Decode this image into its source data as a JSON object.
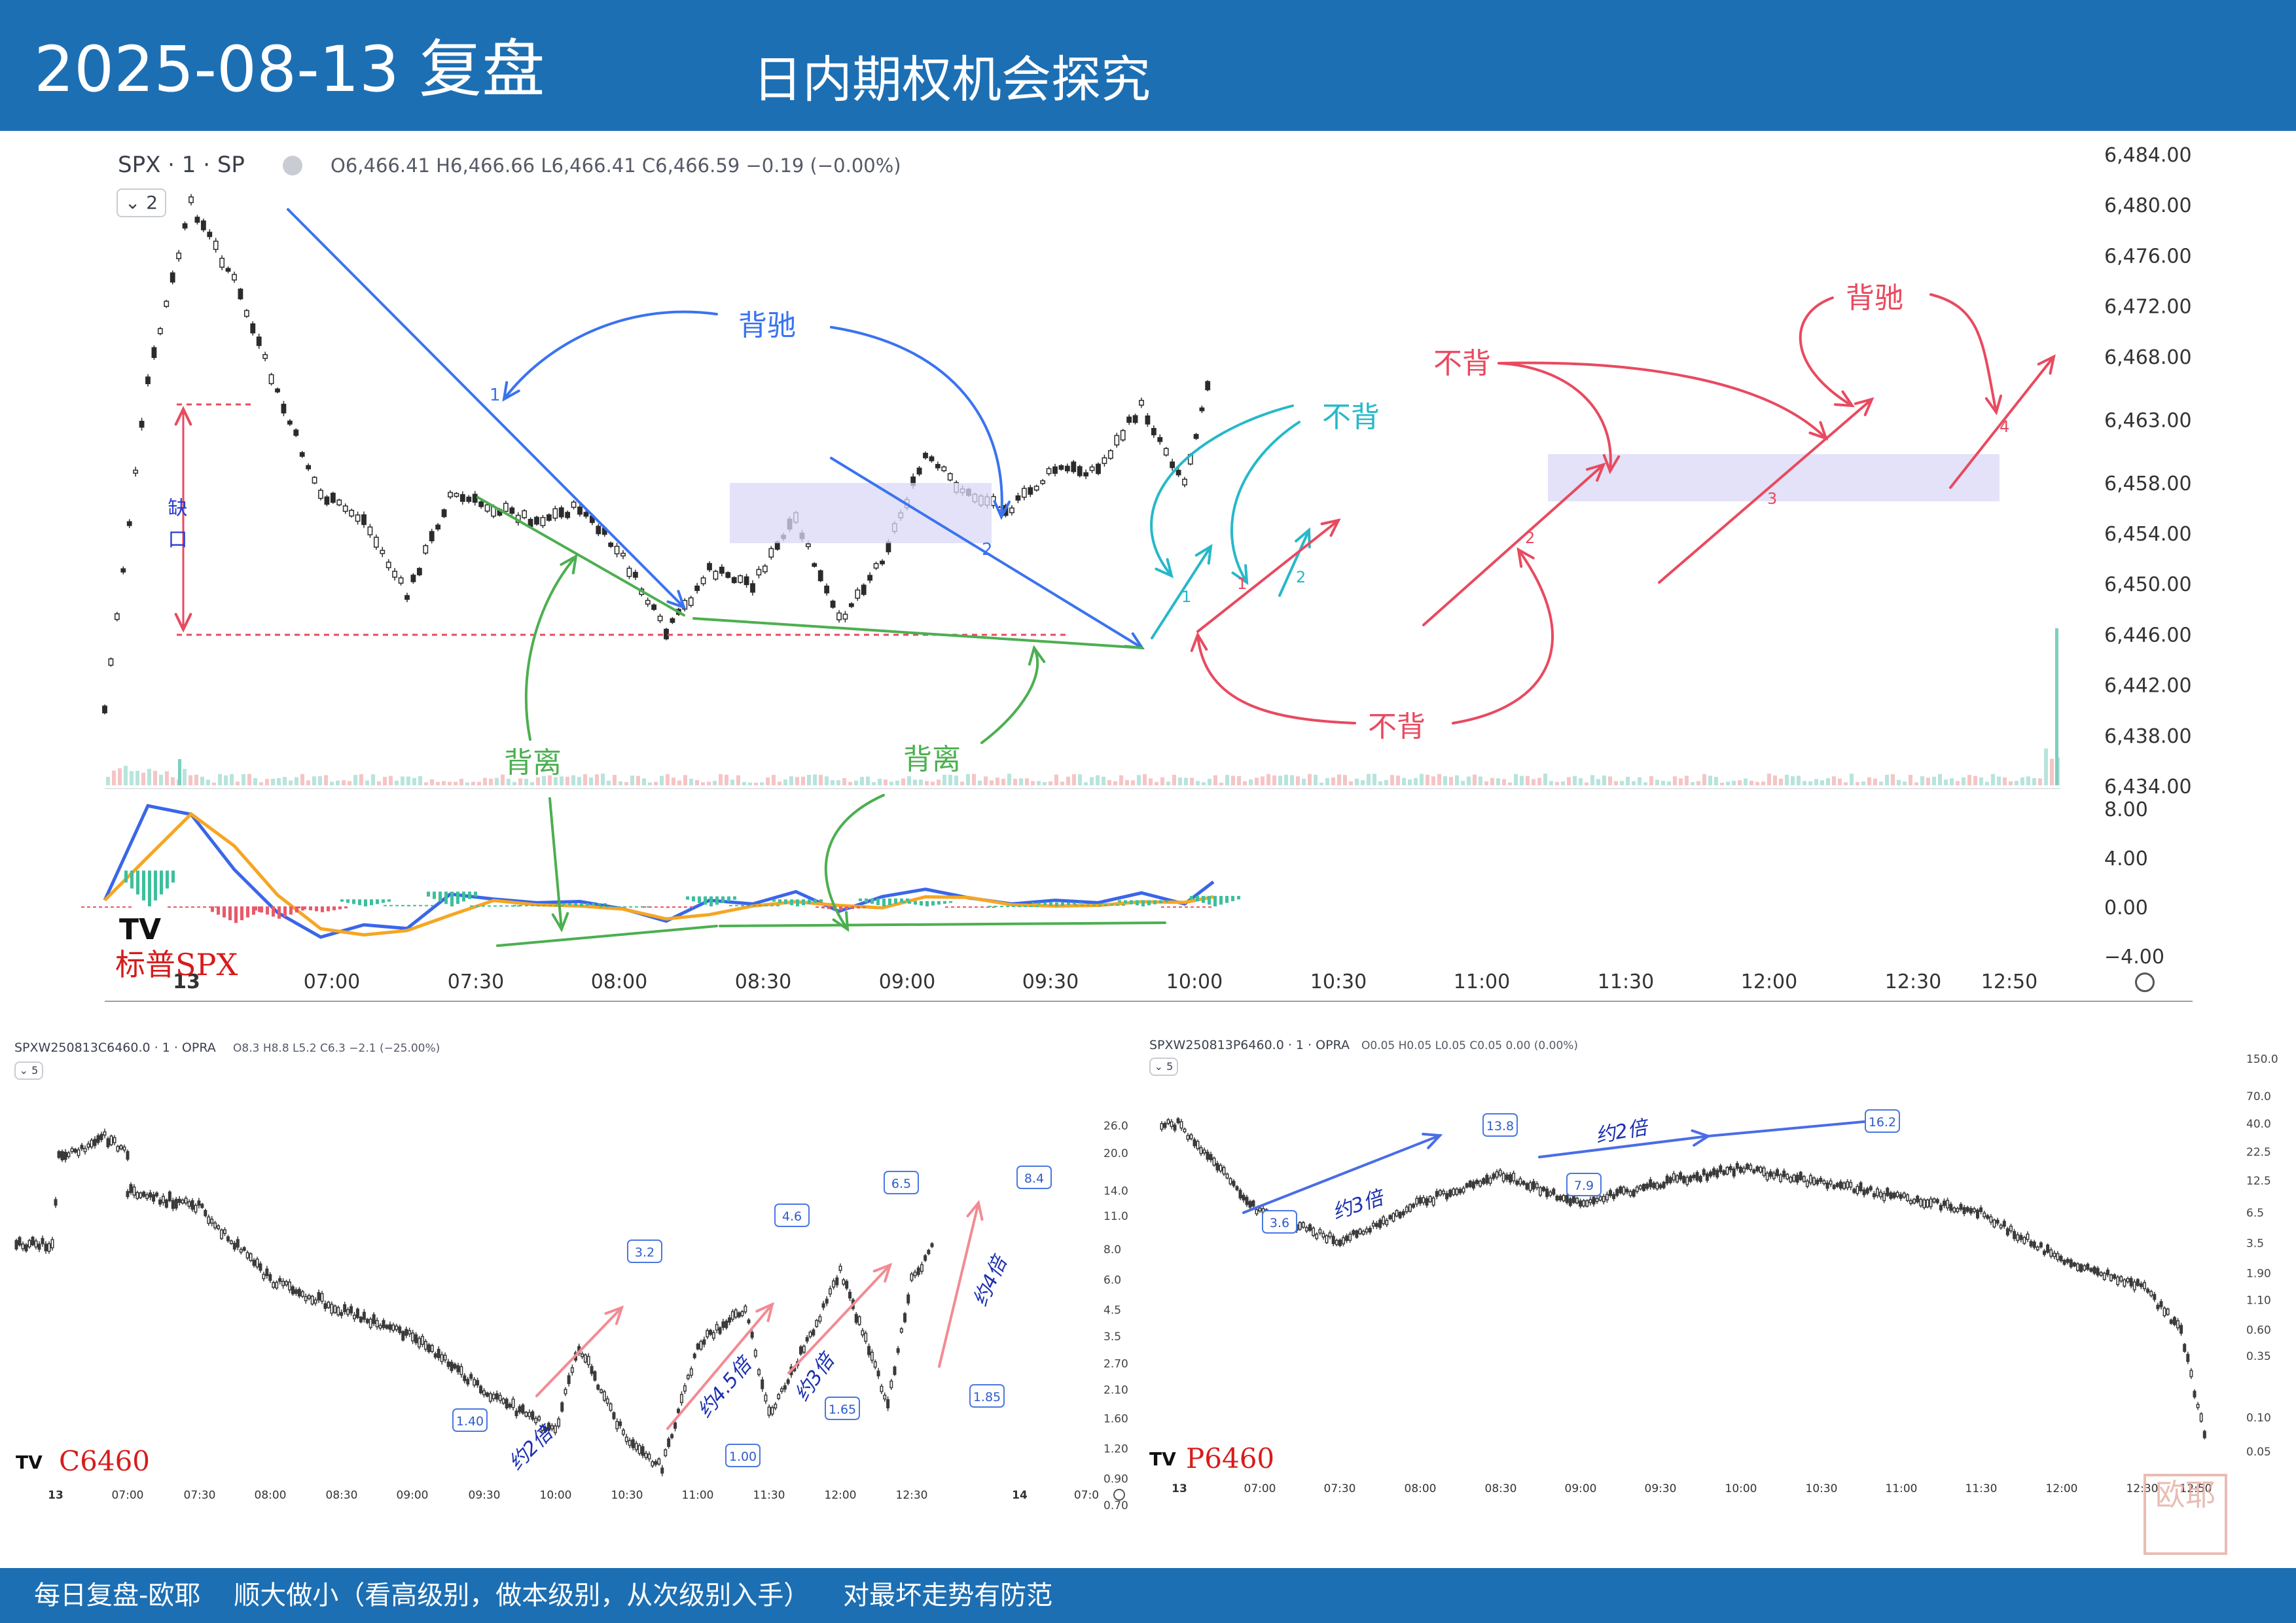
{
  "header": {
    "date": "2025-08-13 复盘",
    "subtitle": "日内期权机会探究"
  },
  "footer": {
    "text": "每日复盘-欧耶    顺大做小（看高级别，做本级别，从次级别入手）    对最坏走势有防范"
  },
  "main_chart": {
    "symbol": "SPX · 1 · SP",
    "ohlc": "O6,466.41 H6,466.66 L6,466.41 C6,466.59 −0.19 (−0.00%)",
    "badge": "⌄ 2",
    "watermark": "标普SPX",
    "logo_text": "TV",
    "price_axis": [
      "6,484.00",
      "6,480.00",
      "6,476.00",
      "6,472.00",
      "6,468.00",
      "6,463.00",
      "6,458.00",
      "6,454.00",
      "6,450.00",
      "6,446.00",
      "6,442.00",
      "6,438.00",
      "6,434.00"
    ],
    "macd_axis": [
      "8.00",
      "4.00",
      "0.00",
      "−4.00"
    ],
    "time_axis": [
      "13",
      "07:00",
      "07:30",
      "08:00",
      "08:30",
      "09:00",
      "09:30",
      "10:00",
      "10:30",
      "11:00",
      "11:30",
      "12:00",
      "12:30",
      "12:50"
    ],
    "annotations": {
      "gap": "缺口",
      "beichi_blue": "背驰",
      "beili_1": "背离",
      "beili_2": "背离",
      "bubei_cyan": "不背",
      "bubei_red_top": "不背",
      "bubei_red_bottom": "不背",
      "beichi_red": "背驰",
      "seg_labels": [
        "1",
        "2",
        "1",
        "2",
        "1",
        "2",
        "1",
        "2",
        "3",
        "4"
      ]
    },
    "colors": {
      "blue": "#3a73f0",
      "green": "#4caf50",
      "cyan": "#26b8c9",
      "red": "#e84a5f",
      "orange": "#f5a623",
      "box": "#d9d8f5"
    }
  },
  "call_chart": {
    "symbol": "SPXW250813C6460.0 · 1 · OPRA",
    "ohlc": "O8.3 H8.8 L5.2 C6.3 −2.1 (−25.00%)",
    "badge": "⌄ 5",
    "watermark": "C6460",
    "logo_text": "TV",
    "price_axis": [
      "26.0",
      "20.0",
      "14.0",
      "11.0",
      "8.0",
      "6.0",
      "4.5",
      "3.5",
      "2.70",
      "2.10",
      "1.60",
      "1.20",
      "0.90",
      "0.70"
    ],
    "time_axis": [
      "13",
      "07:00",
      "07:30",
      "08:00",
      "08:30",
      "09:00",
      "09:30",
      "10:00",
      "10:30",
      "11:00",
      "11:30",
      "12:00",
      "12:30",
      "14",
      "07:0"
    ],
    "price_tags": [
      "1.40",
      "3.2",
      "1.00",
      "4.6",
      "1.65",
      "6.5",
      "1.85",
      "8.4"
    ],
    "multiples": [
      "约2倍",
      "约4.5倍",
      "约3倍",
      "约4倍"
    ]
  },
  "put_chart": {
    "symbol": "SPXW250813P6460.0 · 1 · OPRA",
    "ohlc": "O0.05 H0.05 L0.05 C0.05 0.00 (0.00%)",
    "badge": "⌄ 5",
    "watermark": "P6460",
    "logo_text": "TV",
    "price_axis": [
      "150.0",
      "70.0",
      "40.0",
      "22.5",
      "12.5",
      "6.5",
      "3.5",
      "1.90",
      "1.10",
      "0.60",
      "0.35",
      "0.10",
      "0.05"
    ],
    "time_axis": [
      "13",
      "07:00",
      "07:30",
      "08:00",
      "08:30",
      "09:00",
      "09:30",
      "10:00",
      "10:30",
      "11:00",
      "11:30",
      "12:00",
      "12:30",
      "12:50"
    ],
    "price_tags": [
      "3.6",
      "13.8",
      "7.9",
      "16.2"
    ],
    "multiples": [
      "约3倍",
      "约2倍"
    ]
  },
  "seal": {
    "chars": "欧耶"
  },
  "chart_data": [
    {
      "type": "line",
      "title": "SPX · 1 · SP",
      "x": [
        "06:30",
        "06:45",
        "07:00",
        "07:15",
        "07:30",
        "07:45",
        "08:00",
        "08:15",
        "08:30",
        "08:45",
        "09:00",
        "09:15",
        "09:30",
        "09:45",
        "10:00",
        "10:15",
        "10:30",
        "10:45",
        "11:00",
        "11:15",
        "11:30",
        "11:45",
        "12:00",
        "12:15",
        "12:30",
        "12:45",
        "12:55"
      ],
      "series": [
        {
          "values": [
            6440,
            6466,
            6480,
            6474,
            6465,
            6457,
            6455,
            6449,
            6457,
            6456,
            6455,
            6456,
            6452,
            6446,
            6451,
            6450,
            6455,
            6447,
            6452,
            6460,
            6457,
            6456,
            6459,
            6459,
            6464,
            6458,
            6468
          ]
        }
      ],
      "ylim": [
        6434,
        6484
      ],
      "grid": false
    },
    {
      "type": "line",
      "title": "MACD",
      "x": [
        "06:30",
        "06:45",
        "07:00",
        "07:15",
        "07:30",
        "07:45",
        "08:00",
        "08:15",
        "08:30",
        "08:45",
        "09:00",
        "09:15",
        "09:30",
        "09:45",
        "10:00",
        "10:15",
        "10:30",
        "10:45",
        "11:00",
        "11:15",
        "11:30",
        "11:45",
        "12:00",
        "12:15",
        "12:30",
        "12:45",
        "12:55"
      ],
      "series": [
        {
          "values": [
            0.5,
            8.2,
            7.5,
            3.0,
            -0.5,
            -2.5,
            -1.5,
            -1.8,
            1.0,
            0.6,
            0.3,
            0.4,
            -0.2,
            -1.2,
            0.5,
            0.2,
            1.2,
            -0.4,
            0.8,
            1.4,
            0.7,
            0.2,
            0.5,
            0.3,
            1.1,
            0.2,
            2.0
          ]
        }
      ],
      "ylim": [
        -4,
        8
      ]
    },
    {
      "type": "line",
      "title": "SPXW250813C6460.0 · 1 · OPRA",
      "x": [
        "07:00",
        "07:30",
        "08:00",
        "08:30",
        "09:00",
        "09:30",
        "10:00",
        "10:10",
        "10:30",
        "10:45",
        "11:00",
        "11:20",
        "11:30",
        "11:50",
        "12:00",
        "12:20",
        "12:30",
        "12:40"
      ],
      "series": [
        {
          "values": [
            14,
            12,
            6,
            4.5,
            3.5,
            2.1,
            1.4,
            3.2,
            1.3,
            1.0,
            3.2,
            4.6,
            1.65,
            4.0,
            6.5,
            1.85,
            6.0,
            8.4
          ]
        }
      ]
    },
    {
      "type": "line",
      "title": "SPXW250813P6460.0 · 1 · OPRA",
      "x": [
        "07:00",
        "07:30",
        "08:00",
        "08:30",
        "09:00",
        "09:30",
        "10:00",
        "10:30",
        "11:00",
        "11:30",
        "12:00",
        "12:30",
        "12:45",
        "12:55"
      ],
      "series": [
        {
          "values": [
            6.5,
            3.6,
            8.0,
            13.8,
            7.9,
            12.0,
            16.2,
            12.0,
            9.0,
            6.5,
            2.5,
            1.5,
            0.6,
            0.05
          ]
        }
      ]
    }
  ]
}
